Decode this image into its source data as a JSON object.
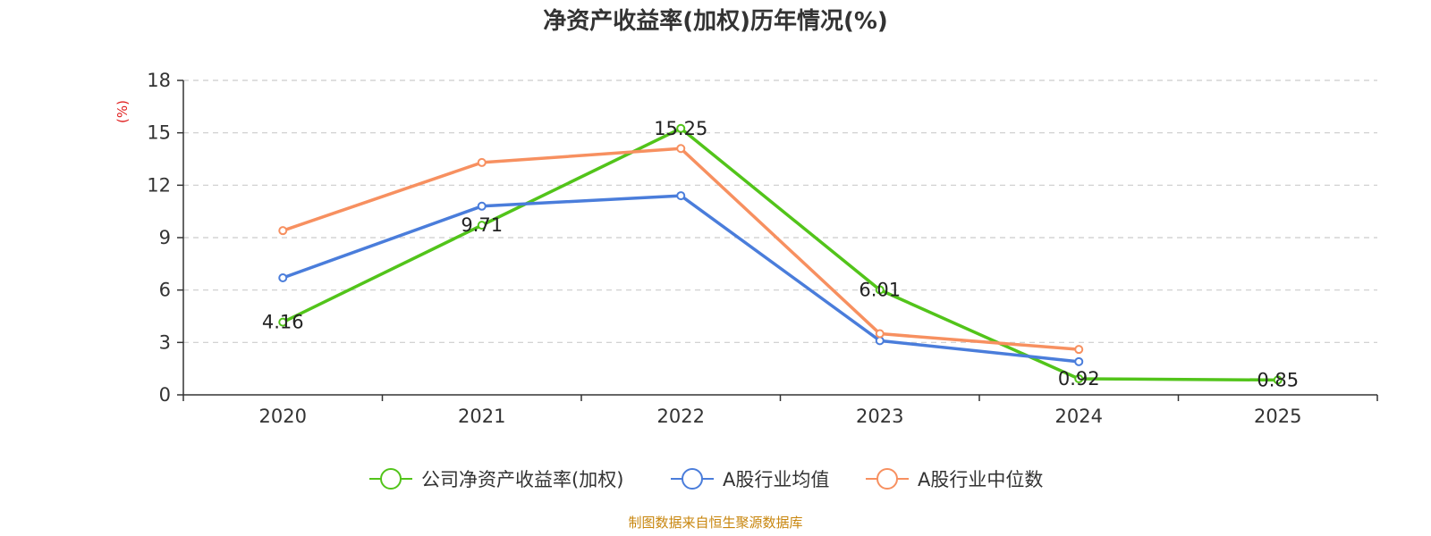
{
  "chart_data": {
    "type": "line",
    "title": "净资产收益率(加权)历年情况(%)",
    "ylabel": "(%)",
    "xlabel": "",
    "categories": [
      "2020",
      "2021",
      "2022",
      "2023",
      "2024",
      "2025"
    ],
    "ylim": [
      0,
      18
    ],
    "yticks": [
      0,
      3,
      6,
      9,
      12,
      15,
      18
    ],
    "grid": true,
    "legend_position": "bottom",
    "series": [
      {
        "name": "公司净资产收益率(加权)",
        "color": "#52c41a",
        "values": [
          4.16,
          9.71,
          15.25,
          6.01,
          0.92,
          0.85
        ],
        "labels": [
          "4.16",
          "9.71",
          "15.25",
          "6.01",
          "0.92",
          "0.85"
        ]
      },
      {
        "name": "A股行业均值",
        "color": "#4a7ddb",
        "values": [
          6.7,
          10.8,
          11.4,
          3.1,
          1.9,
          null
        ]
      },
      {
        "name": "A股行业中位数",
        "color": "#f79060",
        "values": [
          9.4,
          13.3,
          14.1,
          3.5,
          2.6,
          null
        ]
      }
    ],
    "source": "制图数据来自恒生聚源数据库",
    "unit_color": "#e02020",
    "source_color": "#c8860e"
  }
}
